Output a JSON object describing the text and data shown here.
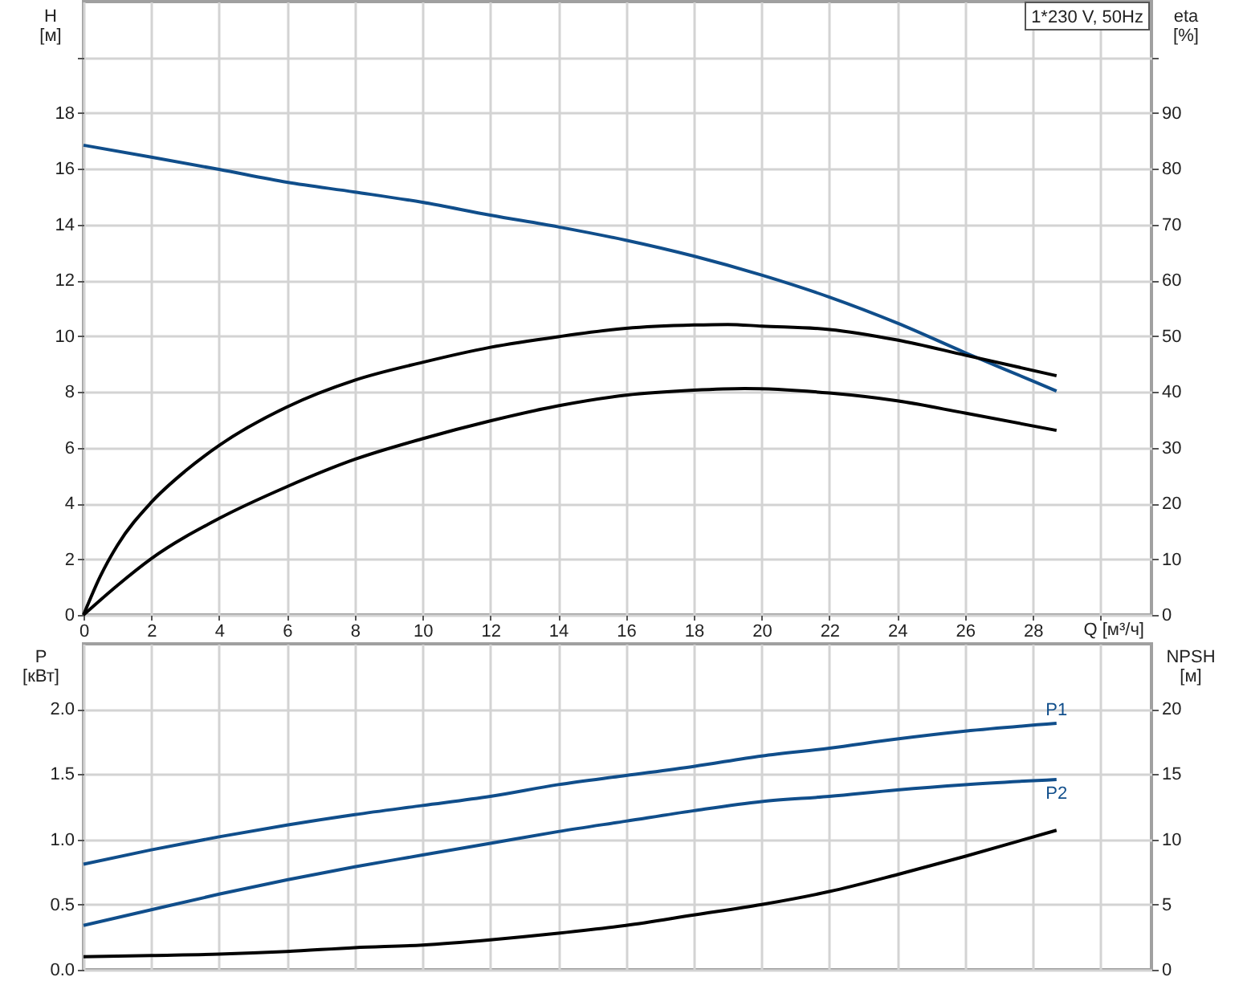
{
  "chart_data": [
    {
      "type": "line",
      "xlabel": "Q [м³/ч]",
      "ylabel": "H [м]",
      "y2label": "eta [%]",
      "annotations": [
        "1*230 V, 50Hz"
      ],
      "xlim": [
        0,
        31.5
      ],
      "xticks": [
        0,
        2,
        4,
        6,
        8,
        10,
        12,
        14,
        16,
        18,
        20,
        22,
        24,
        26,
        28,
        {
          "value": 30,
          "label": null
        }
      ],
      "ylim": [
        0,
        22
      ],
      "yticks": [
        0,
        2,
        4,
        6,
        8,
        10,
        12,
        14,
        16,
        18,
        {
          "value": 20,
          "label": null
        }
      ],
      "y2lim": [
        0,
        110
      ],
      "y2ticks": [
        0,
        10,
        20,
        30,
        40,
        50,
        60,
        70,
        80,
        90,
        {
          "value": 100,
          "label": null
        }
      ],
      "grid": true,
      "series": [
        {
          "color": "#104e8b",
          "x": [
            0,
            2,
            4,
            6,
            8,
            10,
            12,
            14,
            16,
            18,
            20,
            22,
            24,
            26,
            28,
            28.7
          ],
          "values": [
            16.85,
            16.42,
            15.98,
            15.52,
            15.17,
            14.8,
            14.34,
            13.92,
            13.44,
            12.87,
            12.19,
            11.4,
            10.47,
            9.41,
            8.39,
            8.03
          ]
        },
        {
          "color": "#000000",
          "axis": "y2",
          "x": [
            0,
            0.5,
            1,
            2,
            3,
            4,
            6,
            8,
            10,
            12,
            14,
            16,
            18,
            19,
            20,
            22,
            24,
            26,
            28.7
          ],
          "values": [
            0,
            7,
            12.5,
            20.2,
            25.8,
            30.4,
            37.3,
            42.1,
            45.3,
            48.0,
            49.9,
            51.4,
            52.0,
            52.1,
            51.8,
            51.2,
            49.3,
            46.6,
            42.9
          ]
        },
        {
          "color": "#000000",
          "axis": "y2",
          "x": [
            0,
            1,
            2,
            4,
            6,
            8,
            10,
            12,
            14,
            16,
            18,
            19.5,
            22,
            24,
            26,
            28.7
          ],
          "values": [
            0,
            5.3,
            10.1,
            17.3,
            23.0,
            27.9,
            31.6,
            34.8,
            37.5,
            39.4,
            40.3,
            40.6,
            39.8,
            38.4,
            36.2,
            33.1
          ]
        }
      ]
    },
    {
      "type": "line",
      "ylabel": "P [кВт]",
      "y2label": "NPSH [м]",
      "xlim": [
        0,
        31.5
      ],
      "xticks": [
        0,
        2,
        4,
        6,
        8,
        10,
        12,
        14,
        16,
        18,
        20,
        22,
        24,
        26,
        28,
        30
      ],
      "ylim": [
        0,
        2.5
      ],
      "yticks": [
        {
          "value": 0,
          "label": "0.0"
        },
        0.5,
        {
          "value": 1,
          "label": "1.0"
        },
        1.5,
        {
          "value": 2,
          "label": "2.0"
        }
      ],
      "y2lim": [
        0,
        25
      ],
      "y2ticks": [
        0,
        5,
        10,
        15,
        20
      ],
      "grid": true,
      "tick_labels": "y",
      "series": [
        {
          "name": "P1",
          "color": "#104e8b",
          "x": [
            0,
            2,
            4,
            6,
            8,
            10,
            12,
            14,
            16,
            18,
            20,
            22,
            24,
            26,
            28.7
          ],
          "values": [
            0.81,
            0.92,
            1.02,
            1.11,
            1.19,
            1.26,
            1.33,
            1.42,
            1.49,
            1.56,
            1.64,
            1.7,
            1.77,
            1.83,
            1.89
          ]
        },
        {
          "name": "P2",
          "color": "#104e8b",
          "x": [
            0,
            2,
            4,
            6,
            8,
            10,
            12,
            14,
            16,
            18,
            20,
            22,
            24,
            26,
            28.7
          ],
          "values": [
            0.34,
            0.46,
            0.58,
            0.69,
            0.79,
            0.88,
            0.97,
            1.06,
            1.14,
            1.22,
            1.29,
            1.33,
            1.38,
            1.42,
            1.46
          ]
        },
        {
          "color": "#000000",
          "axis": "y2",
          "x": [
            0,
            2,
            4,
            6,
            8,
            10,
            12,
            14,
            16,
            18,
            20,
            22,
            24,
            26,
            28.7
          ],
          "values": [
            1.0,
            1.1,
            1.2,
            1.4,
            1.7,
            1.9,
            2.3,
            2.8,
            3.4,
            4.2,
            5.0,
            6.0,
            7.3,
            8.7,
            10.7
          ]
        }
      ]
    }
  ]
}
